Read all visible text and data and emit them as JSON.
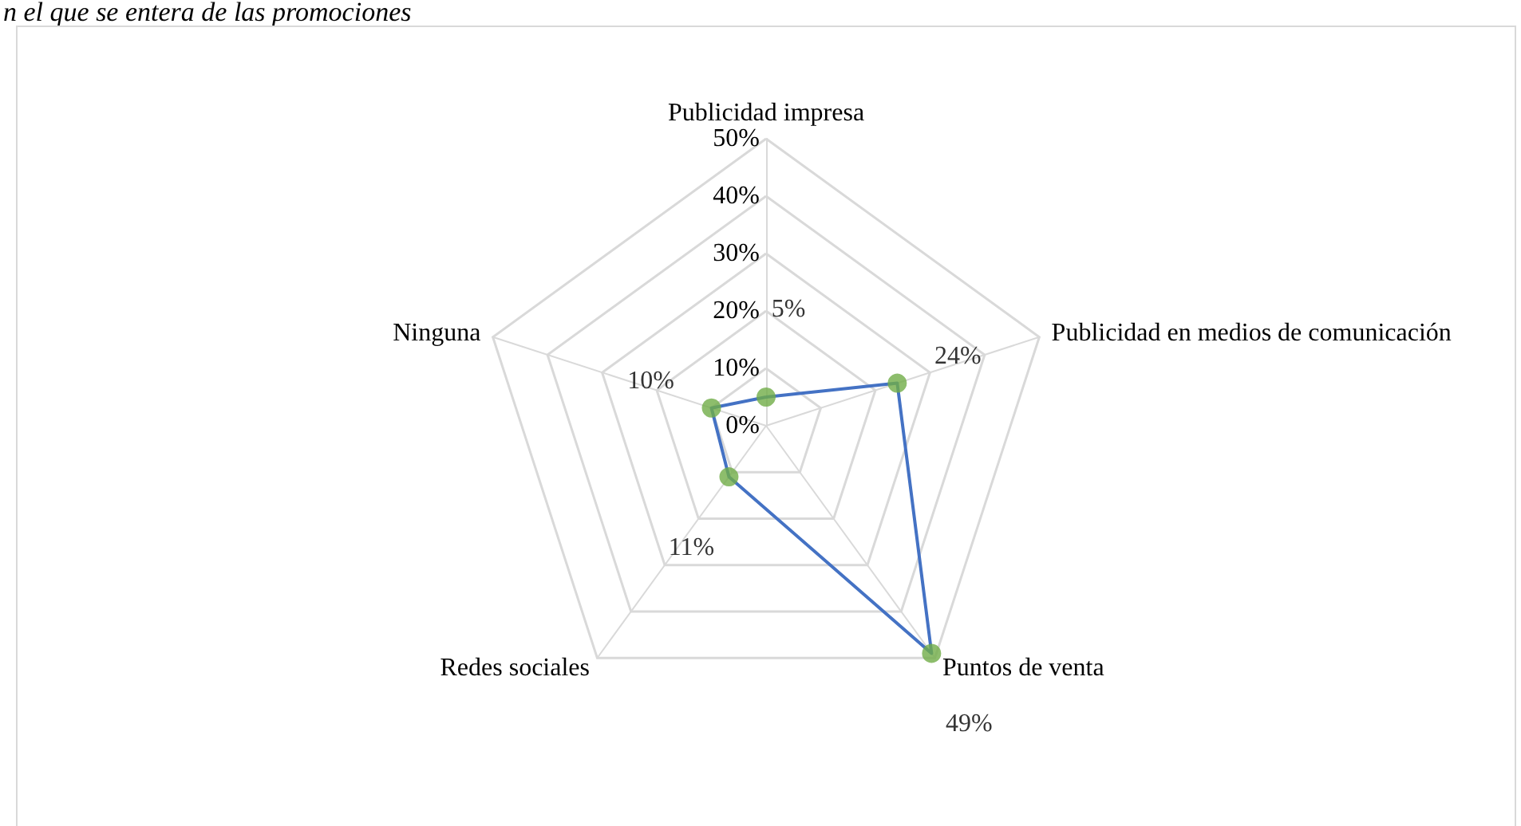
{
  "chart_data": {
    "type": "radar",
    "title": "n el que se entera de las promociones",
    "categories": [
      "Publicidad impresa",
      "Publicidad en medios de comunicación",
      "Puntos de venta",
      "Redes sociales",
      "Ninguna"
    ],
    "series": [
      {
        "color": "#4472c4",
        "colors": [
          "#70ad47",
          "#70ad47",
          "#70ad47",
          "#70ad47",
          "#70ad47"
        ],
        "values": [
          5,
          24,
          49,
          11,
          10
        ],
        "value_labels": [
          "5%",
          "24%",
          "49%",
          "11%",
          "10%"
        ]
      }
    ],
    "ylim": [
      0,
      50
    ],
    "yticks": [
      {
        "value": 0,
        "label": "0%"
      },
      {
        "value": 10,
        "label": "10%"
      },
      {
        "value": 20,
        "label": "20%"
      },
      {
        "value": 30,
        "label": "30%"
      },
      {
        "value": 40,
        "label": "40%"
      },
      {
        "value": 50,
        "label": "50%"
      }
    ],
    "marker": "circle"
  }
}
